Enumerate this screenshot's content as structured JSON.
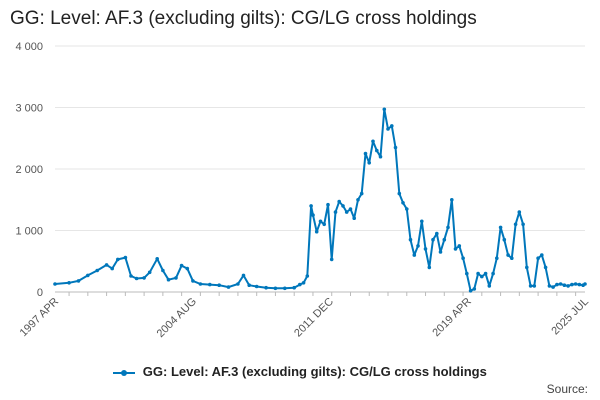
{
  "chart_data": {
    "type": "line",
    "title": "GG: Level: AF.3 (excluding gilts): CG/LG cross holdings",
    "xlabel": "",
    "ylabel": "",
    "x_tick_labels": [
      "1997 APR",
      "2004 AUG",
      "2011 DEC",
      "2019 APR",
      "2025 JUL"
    ],
    "y_tick_labels": [
      "0",
      "1 000",
      "2 000",
      "3 000",
      "4 000"
    ],
    "ylim": [
      0,
      4000
    ],
    "grid": true,
    "legend_position": "bottom-center",
    "series": [
      {
        "name": "GG: Level: AF.3 (excluding gilts): CG/LG cross holdings",
        "color": "#0077bb",
        "x": [
          1997.25,
          1998.0,
          1998.5,
          1999.0,
          1999.5,
          2000.0,
          2000.3,
          2000.6,
          2001.0,
          2001.3,
          2001.6,
          2002.0,
          2002.3,
          2002.7,
          2003.0,
          2003.3,
          2003.7,
          2004.0,
          2004.3,
          2004.6,
          2005.0,
          2005.5,
          2006.0,
          2006.5,
          2007.0,
          2007.3,
          2007.6,
          2008.0,
          2008.5,
          2009.0,
          2009.5,
          2010.0,
          2010.3,
          2010.5,
          2010.7,
          2010.9,
          2011.0,
          2011.2,
          2011.4,
          2011.6,
          2011.8,
          2012.0,
          2012.2,
          2012.4,
          2012.6,
          2012.8,
          2013.0,
          2013.2,
          2013.4,
          2013.6,
          2013.8,
          2014.0,
          2014.2,
          2014.4,
          2014.6,
          2014.8,
          2015.0,
          2015.2,
          2015.4,
          2015.6,
          2015.8,
          2016.0,
          2016.2,
          2016.4,
          2016.6,
          2016.8,
          2017.0,
          2017.2,
          2017.4,
          2017.6,
          2017.8,
          2018.0,
          2018.2,
          2018.4,
          2018.6,
          2018.8,
          2019.0,
          2019.2,
          2019.4,
          2019.6,
          2019.8,
          2020.0,
          2020.2,
          2020.4,
          2020.6,
          2020.8,
          2021.0,
          2021.2,
          2021.4,
          2021.6,
          2021.8,
          2022.0,
          2022.2,
          2022.4,
          2022.6,
          2022.8,
          2023.0,
          2023.2,
          2023.4,
          2023.6,
          2023.8,
          2024.0,
          2024.2,
          2024.4,
          2024.6,
          2024.8,
          2025.0,
          2025.2,
          2025.4,
          2025.5
        ],
        "values": [
          130,
          150,
          180,
          270,
          350,
          440,
          380,
          530,
          560,
          260,
          220,
          230,
          320,
          540,
          350,
          200,
          230,
          430,
          380,
          180,
          130,
          120,
          110,
          80,
          130,
          270,
          110,
          90,
          70,
          60,
          60,
          70,
          120,
          150,
          260,
          1400,
          1250,
          980,
          1150,
          1100,
          1420,
          530,
          1300,
          1470,
          1400,
          1300,
          1350,
          1200,
          1500,
          1600,
          2250,
          2100,
          2450,
          2300,
          2200,
          2970,
          2650,
          2700,
          2350,
          1600,
          1450,
          1350,
          850,
          600,
          750,
          1150,
          700,
          400,
          850,
          950,
          650,
          850,
          1050,
          1500,
          700,
          750,
          550,
          300,
          20,
          50,
          300,
          250,
          300,
          100,
          300,
          550,
          1050,
          850,
          600,
          550,
          1100,
          1300,
          1100,
          400,
          100,
          100,
          550,
          600,
          400,
          100,
          80,
          120,
          130,
          110,
          100,
          120,
          130,
          120,
          110,
          130
        ]
      }
    ],
    "source_label": "Source:"
  }
}
